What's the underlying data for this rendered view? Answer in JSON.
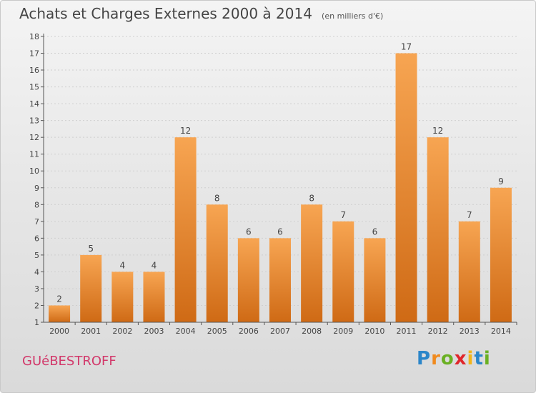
{
  "header": {
    "title": "Achats et Charges Externes 2000 à 2014",
    "subtitle": "(en milliers d'€)"
  },
  "footer": {
    "place": "GUéBESTROFF",
    "brand_letters": [
      "P",
      "r",
      "o",
      "x",
      "i",
      "t",
      "i"
    ],
    "brand_colors": [
      "#2b86c9",
      "#f08a1e",
      "#6ab023",
      "#e0262b",
      "#f2b51b",
      "#2b86c9",
      "#6ab023"
    ]
  },
  "colors": {
    "bar_top": "#f7a552",
    "bar_bottom": "#cf6a15",
    "axis": "#555555",
    "grid": "#cfcfcf"
  },
  "chart_data": {
    "type": "bar",
    "title": "Achats et Charges Externes 2000 à 2014",
    "subtitle": "(en milliers d'€)",
    "categories": [
      "2000",
      "2001",
      "2002",
      "2003",
      "2004",
      "2005",
      "2006",
      "2007",
      "2008",
      "2009",
      "2010",
      "2011",
      "2012",
      "2013",
      "2014"
    ],
    "values": [
      2,
      5,
      4,
      4,
      12,
      8,
      6,
      6,
      8,
      7,
      6,
      17,
      12,
      7,
      9
    ],
    "ylim": [
      1,
      18
    ],
    "yticks": [
      1,
      2,
      3,
      4,
      5,
      6,
      7,
      8,
      9,
      10,
      11,
      12,
      13,
      14,
      15,
      16,
      17,
      18
    ],
    "grid": true,
    "xlabel": "",
    "ylabel": ""
  }
}
